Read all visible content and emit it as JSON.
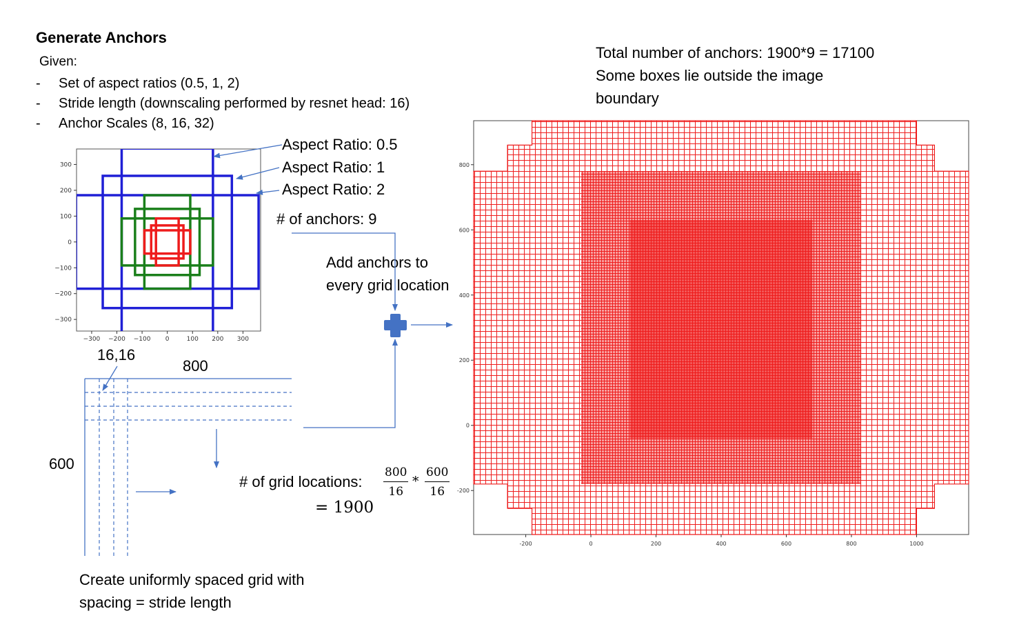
{
  "header": {
    "title": "Generate Anchors",
    "given_label": "Given:",
    "bullets": [
      "Set of aspect ratios (0.5, 1, 2)",
      "Stride length (downscaling performed by resnet head: 16)",
      "Anchor Scales (8, 16, 32)"
    ],
    "bullet_marker": "-"
  },
  "total": {
    "line1": "Total number of anchors: 1900*9 = 17100",
    "line2": "Some boxes lie outside the image",
    "line3": "boundary"
  },
  "anchor_labels": {
    "ar_05": "Aspect Ratio: 0.5",
    "ar_1": "Aspect Ratio: 1",
    "ar_2": "Aspect Ratio: 2",
    "num_anchors": "# of anchors: 9"
  },
  "add_anchors": {
    "line1": "Add anchors to",
    "line2": "every grid location"
  },
  "grid": {
    "coord_label": "16,16",
    "width_label": "800",
    "height_label": "600",
    "grid_locations_label": "# of grid locations:",
    "frac1_num": "800",
    "frac1_den": "16",
    "times": "*",
    "frac2_num": "600",
    "frac2_den": "16",
    "result": "= 1900",
    "caption_line1": "Create uniformly spaced grid with",
    "caption_line2": "spacing = stride length"
  },
  "colors": {
    "blue": "#1f1fd6",
    "green": "#1a7f1a",
    "red": "#ee1c1c",
    "arrow": "#4472c4",
    "plus": "#4472c4"
  },
  "chart_data": [
    {
      "type": "scatter",
      "description_kind": "anchor box rectangles centered at origin",
      "x_ticks": [
        "−300",
        "−200",
        "−100",
        "0",
        "100",
        "200",
        "300"
      ],
      "y_ticks": [
        "300",
        "200",
        "100",
        "0",
        "−100",
        "−200",
        "−300"
      ],
      "xlim": [
        -360,
        370
      ],
      "ylim": [
        -345,
        360
      ],
      "boxes": [
        {
          "color": "blue",
          "x": [
            -181,
            181
          ],
          "y": [
            -362,
            362
          ]
        },
        {
          "color": "blue",
          "x": [
            -256,
            256
          ],
          "y": [
            -256,
            256
          ]
        },
        {
          "color": "blue",
          "x": [
            -362,
            362
          ],
          "y": [
            -181,
            181
          ]
        },
        {
          "color": "green",
          "x": [
            -91,
            91
          ],
          "y": [
            -181,
            181
          ]
        },
        {
          "color": "green",
          "x": [
            -128,
            128
          ],
          "y": [
            -128,
            128
          ]
        },
        {
          "color": "green",
          "x": [
            -181,
            181
          ],
          "y": [
            -91,
            91
          ]
        },
        {
          "color": "red",
          "x": [
            -45,
            45
          ],
          "y": [
            -91,
            91
          ]
        },
        {
          "color": "red",
          "x": [
            -64,
            64
          ],
          "y": [
            -64,
            64
          ]
        },
        {
          "color": "red",
          "x": [
            -91,
            91
          ],
          "y": [
            -45,
            45
          ]
        }
      ]
    },
    {
      "type": "scatter",
      "description_kind": "all anchors drawn over image",
      "x_ticks": [
        "-200",
        "0",
        "200",
        "400",
        "600",
        "800",
        "1000"
      ],
      "y_ticks": [
        "800",
        "600",
        "400",
        "200",
        "0",
        "-200"
      ],
      "xlim": [
        -360,
        1160
      ],
      "ylim": [
        -335,
        935
      ],
      "color": "red"
    }
  ]
}
